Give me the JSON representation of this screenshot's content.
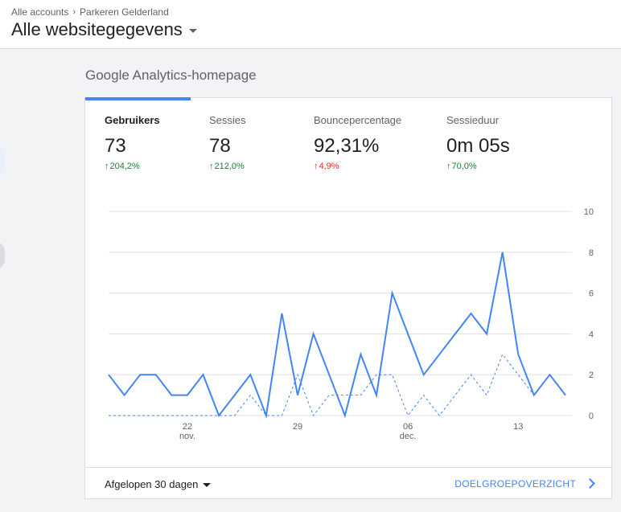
{
  "breadcrumb": {
    "accounts": "Alle accounts",
    "property": "Parkeren Gelderland"
  },
  "view_title": "Alle websitegegevens",
  "section_title": "Google Analytics-homepage",
  "metrics": [
    {
      "label": "Gebruikers",
      "value": "73",
      "change": "204,2%",
      "direction": "up"
    },
    {
      "label": "Sessies",
      "value": "78",
      "change": "212,0%",
      "direction": "up"
    },
    {
      "label": "Bouncepercentage",
      "value": "92,31%",
      "change": "4,9%",
      "direction": "up",
      "status": "negative"
    },
    {
      "label": "Sessieduur",
      "value": "0m 05s",
      "change": "70,0%",
      "direction": "up"
    }
  ],
  "colors": {
    "accent": "#4285f4",
    "positive": "#188038",
    "negative": "#d93025"
  },
  "footer": {
    "range_label": "Afgelopen 30 dagen",
    "overview_link": "DOELGROEPOVERZICHT"
  },
  "chart_data": {
    "type": "line",
    "y_axis_labels": [
      "10",
      "8",
      "6",
      "4",
      "2",
      "0"
    ],
    "ylim": [
      0,
      10
    ],
    "x_tick_labels": [
      {
        "day": "22",
        "month": "nov."
      },
      {
        "day": "29",
        "month": ""
      },
      {
        "day": "06",
        "month": "dec."
      },
      {
        "day": "13",
        "month": ""
      }
    ],
    "x_tick_indices": [
      5,
      12,
      19,
      26
    ],
    "series": [
      {
        "style": "solid",
        "values": [
          2,
          1,
          2,
          2,
          1,
          1,
          2,
          0,
          1,
          2,
          0,
          5,
          1,
          4,
          2,
          0,
          3,
          1,
          6,
          4,
          2,
          3,
          4,
          5,
          4,
          8,
          3,
          1,
          2,
          1
        ]
      },
      {
        "style": "dashed",
        "values": [
          0,
          0,
          0,
          0,
          0,
          0,
          0,
          0,
          0,
          1,
          0,
          0,
          2,
          0,
          1,
          1,
          1,
          2,
          2,
          0,
          1,
          0,
          1,
          2,
          1,
          3,
          2,
          1,
          2,
          1
        ]
      }
    ]
  }
}
